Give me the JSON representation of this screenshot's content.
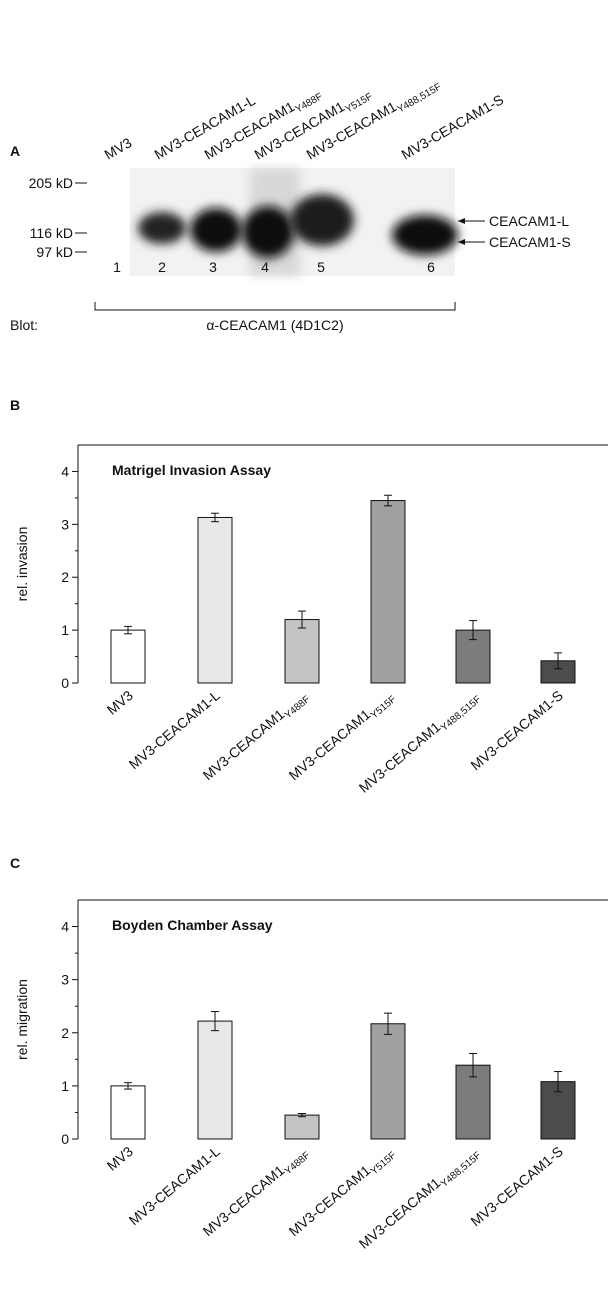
{
  "panel_a": {
    "label": "A",
    "lanes": [
      "MV3",
      {
        "base": "MV3-CEACAM1-L"
      },
      {
        "base": "MV3-CEACAM1",
        "sub": "Y488F"
      },
      {
        "base": "MV3-CEACAM1",
        "sub": "Y515F"
      },
      {
        "base": "MV3-CEACAM1",
        "sub": "Y488,515F"
      },
      {
        "base": "MV3-CEACAM1-S"
      }
    ],
    "markers": [
      "205 kD",
      "116 kD",
      "97 kD"
    ],
    "bands": [
      "CEACAM1-L",
      "CEACAM1-S"
    ],
    "lane_numbers": [
      1,
      2,
      3,
      4,
      5,
      6
    ],
    "blot_label": "Blot:",
    "antibody": "α-CEACAM1 (4D1C2)"
  },
  "chart_data": [
    {
      "type": "bar",
      "panel": "B",
      "title": "Matrigel Invasion Assay",
      "y_label": "rel. invasion",
      "categories": [
        "MV3",
        {
          "base": "MV3-CEACAM1-L"
        },
        {
          "base": "MV3-CEACAM1",
          "sub": "Y488F"
        },
        {
          "base": "MV3-CEACAM1",
          "sub": "Y515F"
        },
        {
          "base": "MV3-CEACAM1",
          "sub": "Y488,515F"
        },
        {
          "base": "MV3-CEACAM1-S"
        }
      ],
      "values": [
        1.0,
        3.13,
        1.2,
        3.45,
        1.0,
        0.42
      ],
      "errors": [
        0.07,
        0.08,
        0.16,
        0.1,
        0.18,
        0.15
      ],
      "colors": [
        "#ffffff",
        "#e8e8e8",
        "#c4c4c4",
        "#a0a0a0",
        "#7c7c7c",
        "#4c4c4c"
      ],
      "ylim": [
        0,
        4.5
      ],
      "yticks": [
        0,
        1,
        2,
        3,
        4
      ]
    },
    {
      "type": "bar",
      "panel": "C",
      "title": "Boyden Chamber Assay",
      "y_label": "rel. migration",
      "categories": [
        "MV3",
        {
          "base": "MV3-CEACAM1-L"
        },
        {
          "base": "MV3-CEACAM1",
          "sub": "Y488F"
        },
        {
          "base": "MV3-CEACAM1",
          "sub": "Y515F"
        },
        {
          "base": "MV3-CEACAM1",
          "sub": "Y488,515F"
        },
        {
          "base": "MV3-CEACAM1-S"
        }
      ],
      "values": [
        1.0,
        2.22,
        0.45,
        2.17,
        1.39,
        1.08
      ],
      "errors": [
        0.06,
        0.18,
        0.03,
        0.2,
        0.22,
        0.19
      ],
      "colors": [
        "#ffffff",
        "#e8e8e8",
        "#c4c4c4",
        "#a0a0a0",
        "#7c7c7c",
        "#4c4c4c"
      ],
      "ylim": [
        0,
        4.5
      ],
      "yticks": [
        0,
        1,
        2,
        3,
        4
      ]
    }
  ]
}
